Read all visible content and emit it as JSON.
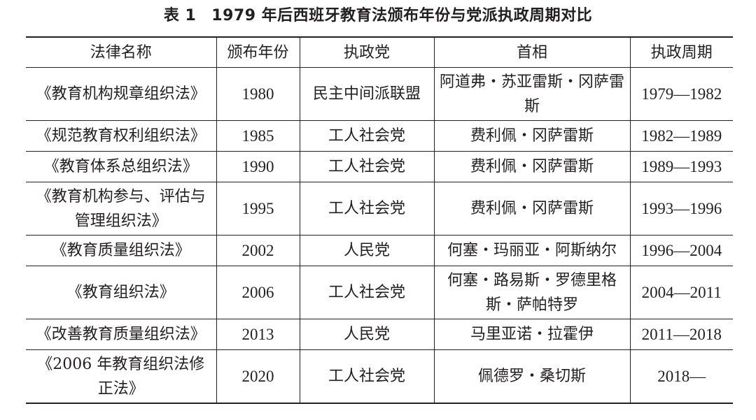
{
  "caption": {
    "label": "表 1",
    "title": "1979 年后西班牙教育法颁布年份与党派执政周期对比"
  },
  "table": {
    "headers": [
      "法律名称",
      "颁布年份",
      "执政党",
      "首相",
      "执政周期"
    ],
    "rows": [
      {
        "law": "《教育机构规章组织法》",
        "year": "1980",
        "party": "民主中间派联盟",
        "pm": "阿道弗・苏亚雷斯・冈萨雷斯",
        "period": "1979—1982"
      },
      {
        "law": "《规范教育权利组织法》",
        "year": "1985",
        "party": "工人社会党",
        "pm": "费利佩・冈萨雷斯",
        "period": "1982—1989"
      },
      {
        "law": "《教育体系总组织法》",
        "year": "1990",
        "party": "工人社会党",
        "pm": "费利佩・冈萨雷斯",
        "period": "1989—1993"
      },
      {
        "law": "《教育机构参与、评估与管理组织法》",
        "year": "1995",
        "party": "工人社会党",
        "pm": "费利佩・冈萨雷斯",
        "period": "1993—1996"
      },
      {
        "law": "《教育质量组织法》",
        "year": "2002",
        "party": "人民党",
        "pm": "何塞・玛丽亚・阿斯纳尔",
        "period": "1996—2004"
      },
      {
        "law": "《教育组织法》",
        "year": "2006",
        "party": "工人社会党",
        "pm": "何塞・路易斯・罗德里格斯・萨帕特罗",
        "period": "2004—2011"
      },
      {
        "law": "《改善教育质量组织法》",
        "year": "2013",
        "party": "人民党",
        "pm": "马里亚诺・拉霍伊",
        "period": "2011—2018"
      },
      {
        "law": "《2006 年教育组织法修正法》",
        "year": "2020",
        "party": "工人社会党",
        "pm": "佩德罗・桑切斯",
        "period": "2018—"
      }
    ]
  }
}
